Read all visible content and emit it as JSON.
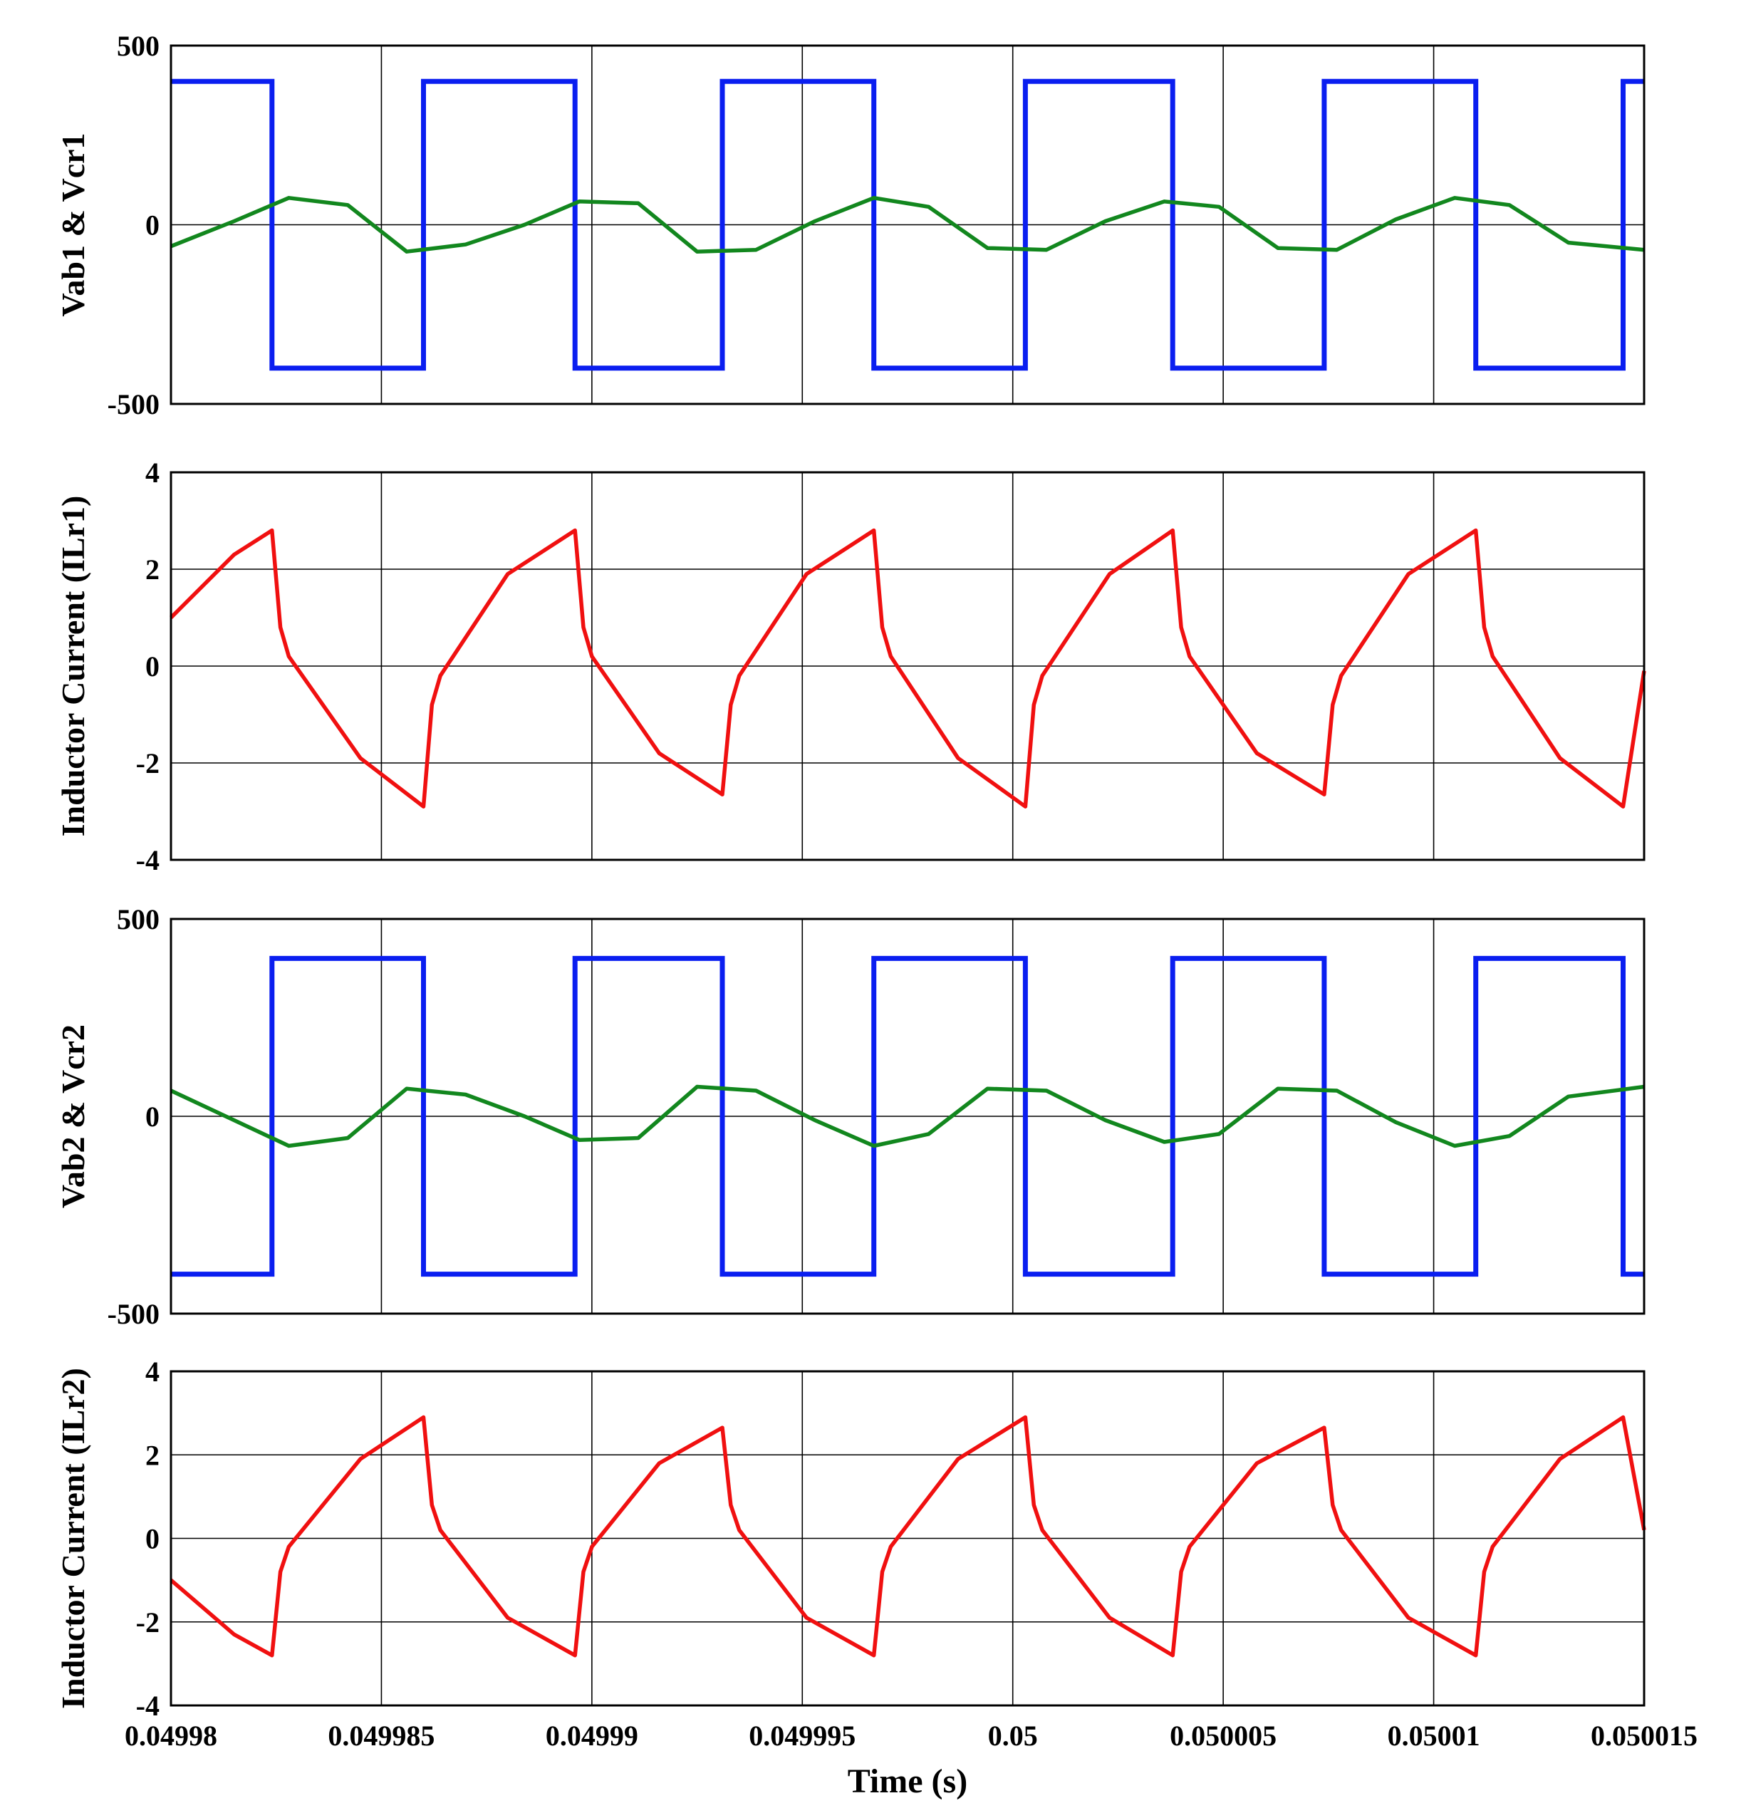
{
  "chart_data": [
    {
      "type": "line",
      "panel": "voltage-1",
      "ylabel": "Vab1 & Vcr1",
      "ylim": [
        -500,
        500
      ],
      "yticks": [
        500,
        0,
        -500
      ],
      "xlim": [
        0.04998,
        0.050015
      ],
      "grid": true,
      "series": [
        {
          "name": "Vab1",
          "color": "#0a1ef0",
          "x": [
            0.04998,
            0.0499824,
            0.0499824,
            0.049986,
            0.049986,
            0.0499896,
            0.0499896,
            0.0499931,
            0.0499931,
            0.0499967,
            0.0499967,
            0.0500003,
            0.0500003,
            0.0500038,
            0.0500038,
            0.0500074,
            0.0500074,
            0.050011,
            0.050011,
            0.0500145,
            0.0500145,
            0.050015
          ],
          "y": [
            400,
            400,
            -400,
            -400,
            400,
            400,
            -400,
            -400,
            400,
            400,
            -400,
            -400,
            400,
            400,
            -400,
            -400,
            400,
            400,
            -400,
            -400,
            400,
            400
          ]
        },
        {
          "name": "Vcr1",
          "color": "#12871e",
          "x": [
            0.04998,
            0.0499815,
            0.0499828,
            0.0499842,
            0.0499856,
            0.049987,
            0.0499884,
            0.0499897,
            0.0499911,
            0.0499925,
            0.0499939,
            0.0499953,
            0.0499967,
            0.049998,
            0.0499994,
            0.0500008,
            0.0500022,
            0.0500036,
            0.0500049,
            0.0500063,
            0.0500077,
            0.0500091,
            0.0500105,
            0.0500118,
            0.0500132,
            0.050015
          ],
          "y": [
            -60,
            10,
            75,
            55,
            -75,
            -55,
            0,
            65,
            60,
            -75,
            -70,
            10,
            75,
            50,
            -65,
            -70,
            10,
            65,
            50,
            -65,
            -70,
            15,
            75,
            55,
            -50,
            -70
          ]
        }
      ]
    },
    {
      "type": "line",
      "panel": "current-1",
      "ylabel": "Inductor Current (ILr1)",
      "ylim": [
        -4,
        4
      ],
      "yticks": [
        4,
        2,
        0,
        -2,
        -4
      ],
      "xlim": [
        0.04998,
        0.050015
      ],
      "grid": true,
      "series": [
        {
          "name": "ILr1",
          "color": "#f01010",
          "x": [
            0.04998,
            0.0499815,
            0.0499824,
            0.0499826,
            0.0499828,
            0.0499845,
            0.049986,
            0.0499862,
            0.0499864,
            0.049988,
            0.0499896,
            0.0499898,
            0.04999,
            0.0499916,
            0.0499931,
            0.0499933,
            0.0499935,
            0.0499951,
            0.0499967,
            0.0499969,
            0.0499971,
            0.0499987,
            0.0500003,
            0.0500005,
            0.0500007,
            0.0500023,
            0.0500038,
            0.050004,
            0.0500042,
            0.0500058,
            0.0500074,
            0.0500076,
            0.0500078,
            0.0500094,
            0.050011,
            0.0500112,
            0.0500114,
            0.050013,
            0.0500145,
            0.050015
          ],
          "y": [
            1.0,
            2.3,
            2.8,
            0.8,
            0.2,
            -1.9,
            -2.9,
            -0.8,
            -0.2,
            1.9,
            2.8,
            0.8,
            0.2,
            -1.8,
            -2.65,
            -0.8,
            -0.2,
            1.9,
            2.8,
            0.8,
            0.2,
            -1.9,
            -2.9,
            -0.8,
            -0.2,
            1.9,
            2.8,
            0.8,
            0.2,
            -1.8,
            -2.65,
            -0.8,
            -0.2,
            1.9,
            2.8,
            0.8,
            0.2,
            -1.9,
            -2.9,
            -0.1
          ]
        }
      ]
    },
    {
      "type": "line",
      "panel": "voltage-2",
      "ylabel": "Vab2 & Vcr2",
      "ylim": [
        -500,
        500
      ],
      "yticks": [
        500,
        0,
        -500
      ],
      "xlim": [
        0.04998,
        0.050015
      ],
      "grid": true,
      "series": [
        {
          "name": "Vab2",
          "color": "#0a1ef0",
          "x": [
            0.04998,
            0.0499824,
            0.0499824,
            0.049986,
            0.049986,
            0.0499896,
            0.0499896,
            0.0499931,
            0.0499931,
            0.0499967,
            0.0499967,
            0.0500003,
            0.0500003,
            0.0500038,
            0.0500038,
            0.0500074,
            0.0500074,
            0.050011,
            0.050011,
            0.0500145,
            0.0500145,
            0.050015
          ],
          "y": [
            -400,
            -400,
            400,
            400,
            -400,
            -400,
            400,
            400,
            -400,
            -400,
            400,
            400,
            -400,
            -400,
            400,
            400,
            -400,
            -400,
            400,
            400,
            -400,
            -400
          ]
        },
        {
          "name": "Vcr2",
          "color": "#12871e",
          "x": [
            0.04998,
            0.0499815,
            0.0499828,
            0.0499842,
            0.0499856,
            0.049987,
            0.0499884,
            0.0499897,
            0.0499911,
            0.0499925,
            0.0499939,
            0.0499953,
            0.0499967,
            0.049998,
            0.0499994,
            0.0500008,
            0.0500022,
            0.0500036,
            0.0500049,
            0.0500063,
            0.0500077,
            0.0500091,
            0.0500105,
            0.0500118,
            0.0500132,
            0.050015
          ],
          "y": [
            65,
            -10,
            -75,
            -55,
            70,
            55,
            0,
            -60,
            -55,
            75,
            65,
            -10,
            -75,
            -45,
            70,
            65,
            -10,
            -65,
            -45,
            70,
            65,
            -15,
            -75,
            -50,
            50,
            75
          ]
        }
      ]
    },
    {
      "type": "line",
      "panel": "current-2",
      "ylabel": "Inductor Current (ILr2)",
      "ylim": [
        -4,
        4
      ],
      "yticks": [
        4,
        2,
        0,
        -2,
        -4
      ],
      "xlim": [
        0.04998,
        0.050015
      ],
      "xticks": [
        "0.04998",
        "0.049985",
        "0.04999",
        "0.049995",
        "0.05",
        "0.050005",
        "0.05001",
        "0.050015"
      ],
      "xlabel": "Time (s)",
      "grid": true,
      "series": [
        {
          "name": "ILr2",
          "color": "#f01010",
          "x": [
            0.04998,
            0.0499815,
            0.0499824,
            0.0499826,
            0.0499828,
            0.0499845,
            0.049986,
            0.0499862,
            0.0499864,
            0.049988,
            0.0499896,
            0.0499898,
            0.04999,
            0.0499916,
            0.0499931,
            0.0499933,
            0.0499935,
            0.0499951,
            0.0499967,
            0.0499969,
            0.0499971,
            0.0499987,
            0.0500003,
            0.0500005,
            0.0500007,
            0.0500023,
            0.0500038,
            0.050004,
            0.0500042,
            0.0500058,
            0.0500074,
            0.0500076,
            0.0500078,
            0.0500094,
            0.050011,
            0.0500112,
            0.0500114,
            0.050013,
            0.0500145,
            0.050015
          ],
          "y": [
            -1.0,
            -2.3,
            -2.8,
            -0.8,
            -0.2,
            1.9,
            2.9,
            0.8,
            0.2,
            -1.9,
            -2.8,
            -0.8,
            -0.2,
            1.8,
            2.65,
            0.8,
            0.2,
            -1.9,
            -2.8,
            -0.8,
            -0.2,
            1.9,
            2.9,
            0.8,
            0.2,
            -1.9,
            -2.8,
            -0.8,
            -0.2,
            1.8,
            2.65,
            0.8,
            0.2,
            -1.9,
            -2.8,
            -0.8,
            -0.2,
            1.9,
            2.9,
            0.2
          ]
        }
      ]
    }
  ]
}
